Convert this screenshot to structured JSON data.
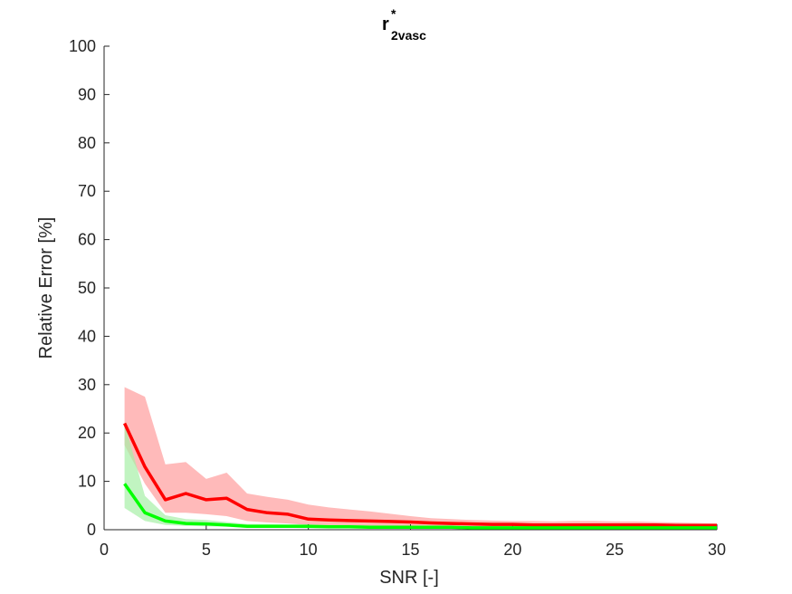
{
  "chart_data": {
    "type": "line",
    "title": {
      "main": "r",
      "superscript": "*",
      "subscript": "2vasc"
    },
    "xlabel": "SNR [-]",
    "ylabel": "Relative Error [%]",
    "xlim": [
      0,
      30
    ],
    "ylim": [
      0,
      100
    ],
    "xticks": [
      0,
      5,
      10,
      15,
      20,
      25,
      30
    ],
    "yticks": [
      0,
      10,
      20,
      30,
      40,
      50,
      60,
      70,
      80,
      90,
      100
    ],
    "grid": false,
    "legend": "none",
    "x": [
      1,
      2,
      3,
      4,
      5,
      6,
      7,
      8,
      9,
      10,
      11,
      12,
      13,
      14,
      15,
      16,
      17,
      18,
      19,
      20,
      21,
      22,
      23,
      24,
      25,
      26,
      27,
      28,
      29,
      30
    ],
    "series": [
      {
        "color": "#ff0000",
        "band_color": "#ffb3b3",
        "values": [
          22,
          13,
          6.2,
          7.5,
          6.2,
          6.5,
          4.2,
          3.5,
          3.2,
          2.2,
          2.0,
          1.9,
          1.8,
          1.7,
          1.6,
          1.4,
          1.3,
          1.2,
          1.1,
          1.1,
          1.0,
          1.0,
          1.0,
          1.0,
          1.0,
          1.0,
          1.0,
          0.9,
          0.9,
          0.9
        ],
        "upper": [
          29.5,
          27.5,
          13.5,
          14.0,
          10.5,
          11.8,
          7.5,
          6.8,
          6.2,
          5.2,
          4.6,
          4.2,
          3.8,
          3.3,
          2.8,
          2.4,
          2.2,
          2.0,
          1.9,
          1.8,
          1.8,
          1.7,
          1.8,
          1.8,
          1.7,
          1.7,
          1.6,
          1.5,
          1.4,
          1.3
        ],
        "lower": [
          17.5,
          9.5,
          3.5,
          3.5,
          3.2,
          2.8,
          1.8,
          1.5,
          1.3,
          1.0,
          0.9,
          0.8,
          0.7,
          0.6,
          0.6,
          0.5,
          0.5,
          0.5,
          0.4,
          0.4,
          0.4,
          0.4,
          0.4,
          0.4,
          0.4,
          0.4,
          0.4,
          0.4,
          0.4,
          0.4
        ]
      },
      {
        "color": "#00ff00",
        "band_color": "#a6f0a6",
        "values": [
          9.5,
          3.5,
          1.8,
          1.3,
          1.2,
          1.0,
          0.7,
          0.7,
          0.7,
          0.7,
          0.6,
          0.6,
          0.5,
          0.5,
          0.5,
          0.5,
          0.5,
          0.4,
          0.4,
          0.4,
          0.4,
          0.4,
          0.4,
          0.4,
          0.4,
          0.4,
          0.4,
          0.4,
          0.4,
          0.4
        ],
        "upper": [
          22.0,
          7.0,
          3.0,
          2.2,
          2.0,
          1.6,
          1.2,
          1.2,
          1.1,
          1.1,
          1.0,
          1.0,
          0.9,
          0.9,
          0.8,
          0.8,
          0.8,
          0.7,
          0.7,
          0.7,
          0.7,
          0.6,
          0.6,
          0.6,
          0.6,
          0.6,
          0.6,
          0.6,
          0.6,
          0.6
        ],
        "lower": [
          4.5,
          1.8,
          1.0,
          0.8,
          0.7,
          0.6,
          0.4,
          0.4,
          0.4,
          0.3,
          0.3,
          0.3,
          0.3,
          0.3,
          0.3,
          0.3,
          0.3,
          0.2,
          0.2,
          0.2,
          0.2,
          0.2,
          0.2,
          0.2,
          0.2,
          0.2,
          0.2,
          0.2,
          0.2,
          0.2
        ]
      }
    ]
  }
}
